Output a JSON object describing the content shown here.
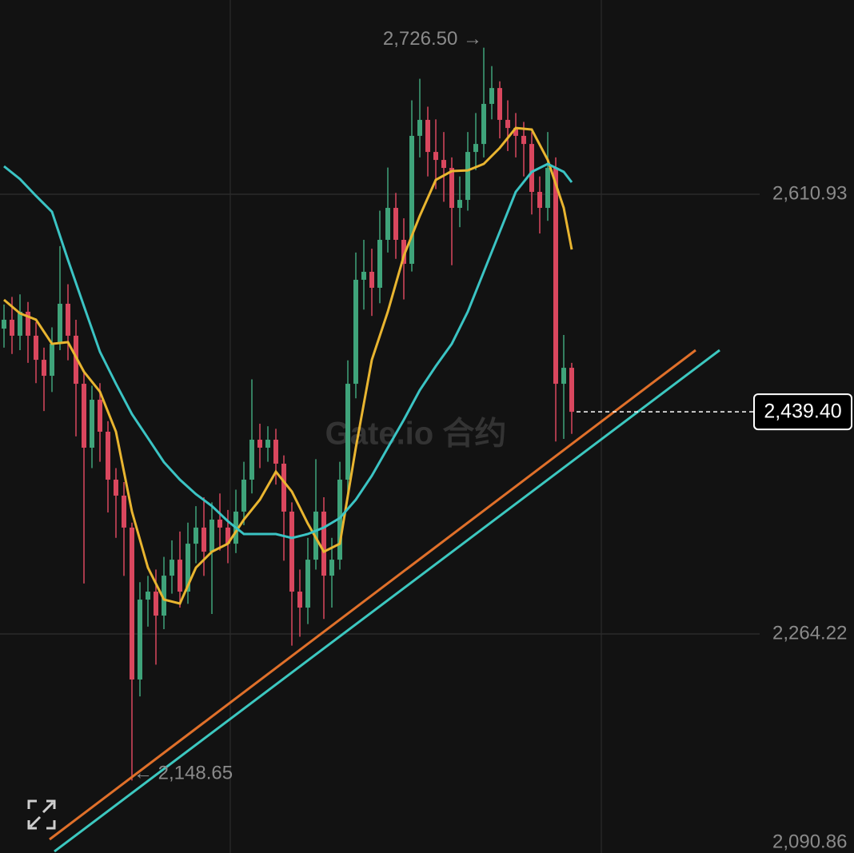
{
  "chart_data": {
    "type": "candlestick",
    "ylim": [
      2090.86,
      2764.12
    ],
    "yticks": [
      {
        "value": 2610.93,
        "label": "2,610.93"
      },
      {
        "value": 2264.22,
        "label": "2,264.22"
      },
      {
        "value": 2090.86,
        "label": "2,090.86"
      }
    ],
    "grid": true,
    "up_color": "#3fa37a",
    "down_color": "#d9475e",
    "open": [
      2505.0,
      2512.0,
      2499.4,
      2518.3,
      2499.4,
      2480.4,
      2467.8,
      2493.0,
      2524.6,
      2499.4,
      2461.5,
      2411.1,
      2448.9,
      2423.7,
      2385.9,
      2373.3,
      2348.1,
      2228.3,
      2291.3,
      2297.6,
      2278.7,
      2310.2,
      2322.8,
      2297.6,
      2335.4,
      2348.1,
      2329.1,
      2354.4,
      2348.1,
      2335.4,
      2360.7,
      2385.9,
      2417.4,
      2411.1,
      2417.4,
      2398.5,
      2360.7,
      2297.6,
      2285.0,
      2322.8,
      2360.7,
      2310.2,
      2322.8,
      2385.9,
      2461.5,
      2543.5,
      2549.8,
      2537.2,
      2575.0,
      2600.2,
      2575.0,
      2556.1,
      2657.0,
      2669.6,
      2644.3,
      2638.0,
      2631.7,
      2600.2,
      2606.5,
      2644.3,
      2650.6,
      2682.2,
      2694.7,
      2669.6,
      2663.2,
      2657.0,
      2650.6,
      2612.8,
      2600.2,
      2631.7,
      2461.5,
      2474.1
    ],
    "high": [
      2524,
      2530,
      2532,
      2526,
      2510,
      2490,
      2506,
      2570,
      2540,
      2512,
      2470,
      2460,
      2462,
      2432,
      2395,
      2384,
      2352,
      2305,
      2310,
      2315,
      2325,
      2338,
      2345,
      2352,
      2365,
      2372,
      2368,
      2375,
      2362,
      2378,
      2400,
      2465,
      2430,
      2428,
      2426,
      2405,
      2368,
      2315,
      2340,
      2402,
      2372,
      2340,
      2400,
      2480,
      2565,
      2575,
      2568,
      2598,
      2632,
      2612,
      2592,
      2685,
      2702,
      2680,
      2670,
      2660,
      2640,
      2625,
      2660,
      2675,
      2726.5,
      2712,
      2700,
      2685,
      2675,
      2668,
      2660,
      2625,
      2660,
      2640,
      2500,
      2478
    ],
    "low": [
      2490,
      2485,
      2488,
      2478,
      2462,
      2440,
      2455,
      2488,
      2480,
      2420,
      2304,
      2395,
      2400,
      2360,
      2340,
      2310,
      2148.65,
      2215,
      2270,
      2240,
      2268,
      2296,
      2285,
      2288,
      2320,
      2310,
      2280,
      2330,
      2320,
      2328,
      2350,
      2375,
      2395,
      2400,
      2382,
      2322,
      2255,
      2262,
      2272,
      2315,
      2276,
      2285,
      2315,
      2375,
      2450,
      2520,
      2515,
      2525,
      2565,
      2560,
      2528,
      2550,
      2640,
      2625,
      2615,
      2605,
      2555,
      2585,
      2598,
      2630,
      2640,
      2670,
      2655,
      2645,
      2640,
      2625,
      2595,
      2580,
      2590,
      2416,
      2418,
      2422
    ],
    "close": [
      2512.0,
      2499.4,
      2518.3,
      2499.4,
      2480.4,
      2467.8,
      2493.0,
      2524.6,
      2499.4,
      2461.5,
      2411.1,
      2448.9,
      2423.7,
      2385.9,
      2373.3,
      2348.1,
      2228.3,
      2291.3,
      2297.6,
      2278.7,
      2310.2,
      2322.8,
      2297.6,
      2335.4,
      2348.1,
      2329.1,
      2354.4,
      2348.1,
      2335.4,
      2360.7,
      2385.9,
      2417.4,
      2411.1,
      2417.4,
      2398.5,
      2360.7,
      2297.6,
      2285.0,
      2322.8,
      2360.7,
      2310.2,
      2322.8,
      2385.9,
      2461.5,
      2543.5,
      2549.8,
      2537.2,
      2575.0,
      2600.2,
      2575.0,
      2556.1,
      2657.0,
      2669.6,
      2644.3,
      2638.0,
      2631.7,
      2600.2,
      2606.5,
      2644.3,
      2650.6,
      2682.2,
      2694.7,
      2669.6,
      2663.2,
      2657.0,
      2650.6,
      2612.8,
      2600.2,
      2631.7,
      2461.5,
      2474.1,
      2439.4
    ],
    "moving_averages": [
      {
        "color": "#e9b530",
        "x": [
          0,
          2,
          4,
          6,
          8,
          10,
          12,
          14,
          16,
          18,
          20,
          22,
          24,
          26,
          28,
          30,
          32,
          34,
          36,
          38,
          40,
          42,
          44,
          46,
          48,
          50,
          52,
          54,
          56,
          58,
          60,
          62,
          64,
          66,
          68,
          70,
          71
        ],
        "values": [
          2527.7,
          2517.0,
          2512.0,
          2493.0,
          2494.3,
          2471.0,
          2455.2,
          2423.7,
          2360.7,
          2316.5,
          2291.3,
          2288.2,
          2316.5,
          2329.1,
          2335.4,
          2354.4,
          2370.1,
          2392.2,
          2376.4,
          2351.2,
          2329.1,
          2335.4,
          2411.1,
          2480.4,
          2518.3,
          2562.4,
          2593.9,
          2622.3,
          2629.2,
          2629.8,
          2634.9,
          2647.5,
          2663.2,
          2662.0,
          2638.0,
          2600.2,
          2567.4
        ]
      },
      {
        "color": "#3bc4c4",
        "x": [
          0,
          2,
          4,
          6,
          8,
          10,
          12,
          14,
          16,
          18,
          20,
          22,
          24,
          26,
          28,
          30,
          32,
          34,
          36,
          38,
          40,
          42,
          44,
          46,
          48,
          50,
          52,
          54,
          56,
          58,
          60,
          62,
          64,
          66,
          68,
          70,
          71
        ],
        "values": [
          2633.0,
          2622.9,
          2609.7,
          2597.1,
          2559.2,
          2522.7,
          2486.7,
          2461.5,
          2437.6,
          2418.7,
          2399.7,
          2385.9,
          2374.5,
          2365.1,
          2353.1,
          2343.0,
          2343.0,
          2343.0,
          2339.9,
          2343.0,
          2348.1,
          2355.6,
          2370.1,
          2389.0,
          2411.1,
          2433.1,
          2456.5,
          2475.4,
          2493.0,
          2518.3,
          2549.8,
          2581.3,
          2612.8,
          2628.6,
          2634.9,
          2628.6,
          2620.4
        ]
      }
    ],
    "trendlines": [
      {
        "color": "#e0702a",
        "x": [
          5.7,
          86.5
        ],
        "values": [
          2102.2,
          2488.0
        ]
      },
      {
        "color": "#3cc8c0",
        "x": [
          6.3,
          89.5
        ],
        "values": [
          2092.7,
          2488.0
        ]
      }
    ],
    "high_label": "2,726.50 →",
    "low_label": "← 2,148.65",
    "last_price": {
      "value": 2439.4,
      "label": "2,439.40"
    },
    "watermark": "Gate.io 合约"
  }
}
